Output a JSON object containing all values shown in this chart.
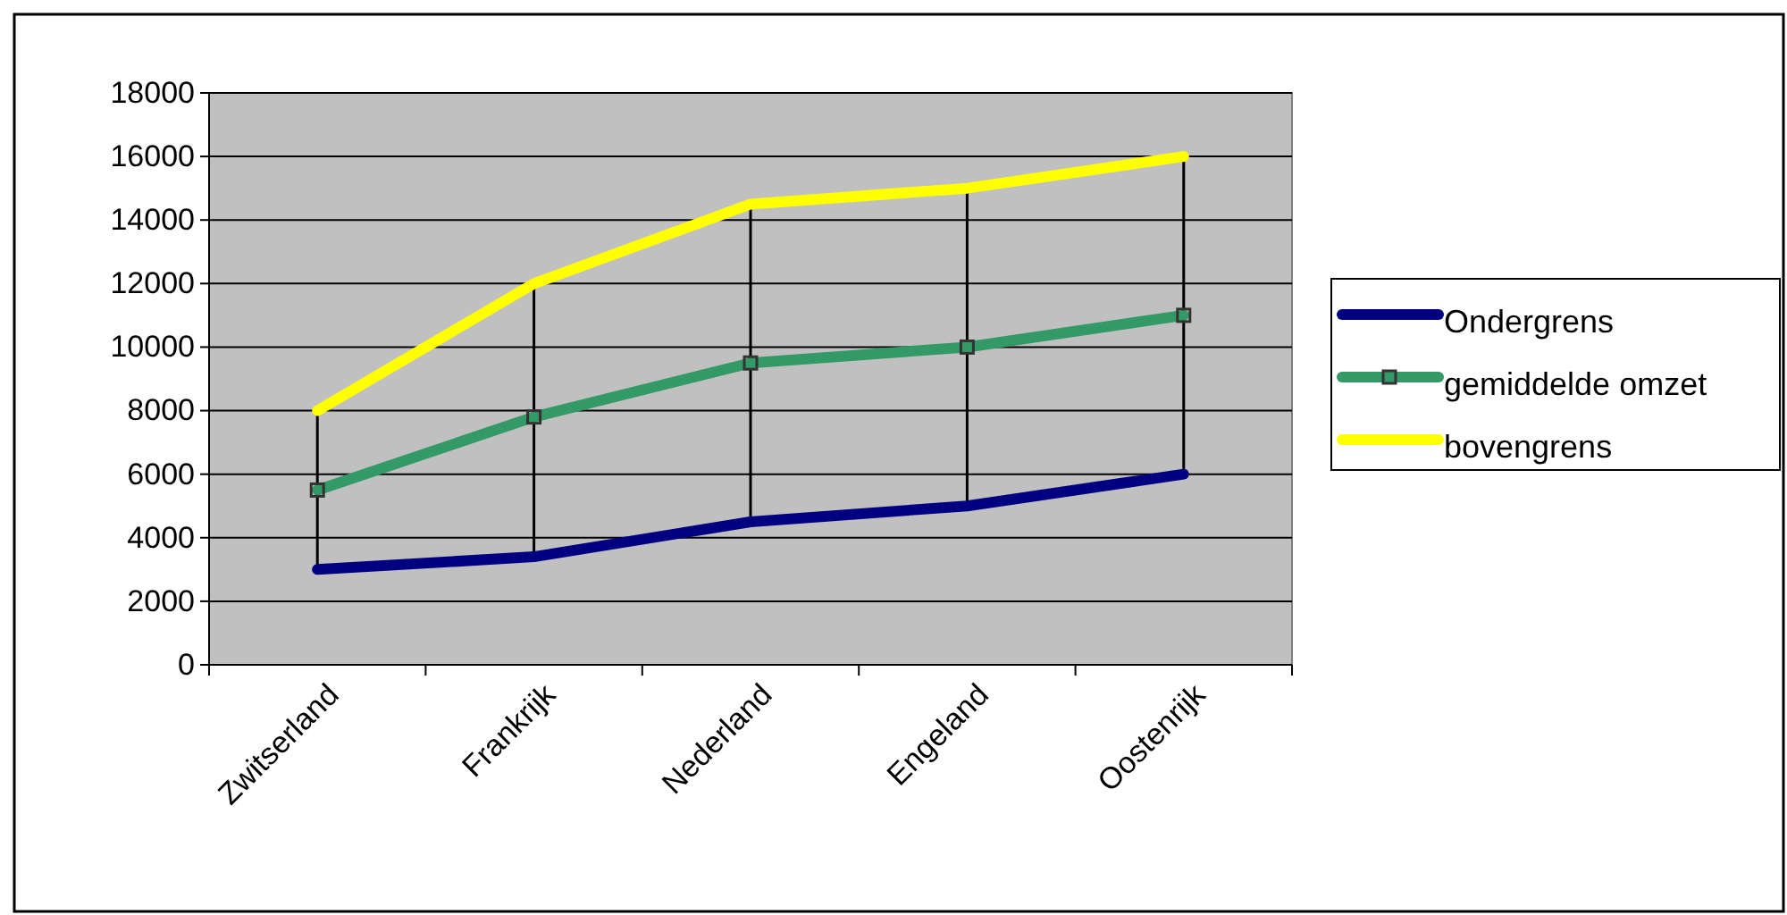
{
  "chart_data": {
    "type": "line",
    "categories": [
      "Zwitserland",
      "Frankrijk",
      "Nederland",
      "Engeland",
      "Oostenrijk"
    ],
    "series": [
      {
        "name": "Ondergrens",
        "color": "#000080",
        "values": [
          3000,
          3400,
          4500,
          5000,
          6000
        ],
        "marker": "none"
      },
      {
        "name": "gemiddelde omzet",
        "color": "#339966",
        "values": [
          5500,
          7800,
          9500,
          10000,
          11000
        ],
        "marker": "square"
      },
      {
        "name": "bovengrens",
        "color": "#ffff00",
        "values": [
          8000,
          12000,
          14500,
          15000,
          16000
        ],
        "marker": "none"
      }
    ],
    "ylim": [
      0,
      18000
    ],
    "yticks": [
      0,
      2000,
      4000,
      6000,
      8000,
      10000,
      12000,
      14000,
      16000,
      18000
    ],
    "grid": "y",
    "legend": "right"
  }
}
